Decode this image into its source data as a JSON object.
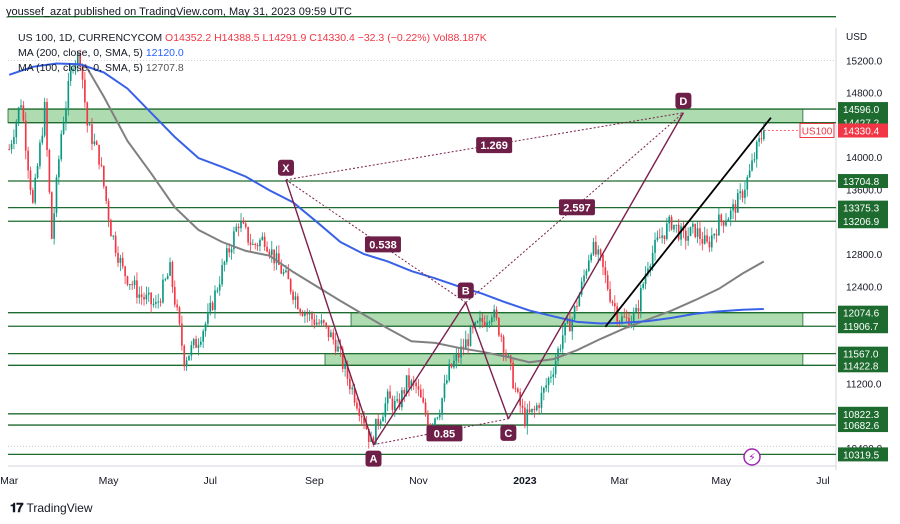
{
  "header": {
    "published": "youssef_azat published on TradingView.com, May 31, 2023 09:59 UTC",
    "symbol_line": {
      "name": "US 100, 1D, CURRENCYCOM",
      "ohlc": "O14352.2 H14388.5 L14291.9 C14330.4 −32.3 (−0.22%)",
      "vol": "Vol88.187K"
    },
    "ma200": {
      "label": "MA (200, close, 0, SMA, 5)",
      "value": "12120.0"
    },
    "ma100": {
      "label": "MA (100, close, 0, SMA, 5)",
      "value": "12707.8"
    }
  },
  "footer": {
    "brand": "TradingView"
  },
  "chart_data": {
    "type": "candlestick",
    "currency": "USD",
    "symbol_tag": "US100",
    "last_price": 14330.4,
    "y_range": [
      10250,
      15600
    ],
    "y_ticks": [
      15200.0,
      14800.0,
      14000.0,
      13600.0,
      12800.0,
      12400.0,
      11200.0,
      10400.0
    ],
    "x_labels": [
      {
        "label": "Mar",
        "i": 0
      },
      {
        "label": "May",
        "i": 42
      },
      {
        "label": "Jul",
        "i": 85
      },
      {
        "label": "Sep",
        "i": 129
      },
      {
        "label": "Nov",
        "i": 173
      },
      {
        "label": "2023",
        "i": 218
      },
      {
        "label": "Mar",
        "i": 258
      },
      {
        "label": "May",
        "i": 301
      },
      {
        "label": "Jul",
        "i": 344
      }
    ],
    "bars_total": 350,
    "price_path": [
      [
        0,
        14100
      ],
      [
        5,
        14700
      ],
      [
        10,
        13400
      ],
      [
        15,
        14600
      ],
      [
        18,
        13000
      ],
      [
        22,
        14300
      ],
      [
        27,
        15200
      ],
      [
        30,
        15260
      ],
      [
        33,
        14400
      ],
      [
        38,
        14000
      ],
      [
        43,
        13100
      ],
      [
        48,
        12600
      ],
      [
        55,
        12300
      ],
      [
        62,
        12150
      ],
      [
        68,
        12600
      ],
      [
        74,
        11500
      ],
      [
        79,
        11700
      ],
      [
        84,
        12000
      ],
      [
        90,
        12600
      ],
      [
        97,
        13200
      ],
      [
        103,
        12900
      ],
      [
        108,
        13000
      ],
      [
        113,
        12700
      ],
      [
        118,
        12450
      ],
      [
        123,
        12150
      ],
      [
        128,
        12000
      ],
      [
        133,
        11900
      ],
      [
        138,
        11700
      ],
      [
        142,
        11350
      ],
      [
        146,
        11050
      ],
      [
        150,
        10760
      ],
      [
        153,
        10450
      ],
      [
        156,
        10750
      ],
      [
        160,
        11000
      ],
      [
        164,
        10900
      ],
      [
        168,
        11200
      ],
      [
        172,
        11150
      ],
      [
        175,
        10900
      ],
      [
        178,
        10700
      ],
      [
        182,
        10900
      ],
      [
        186,
        11350
      ],
      [
        190,
        11550
      ],
      [
        194,
        11750
      ],
      [
        198,
        11900
      ],
      [
        204,
        12100
      ],
      [
        208,
        11800
      ],
      [
        212,
        11350
      ],
      [
        215,
        11000
      ],
      [
        218,
        10760
      ],
      [
        222,
        10850
      ],
      [
        226,
        11100
      ],
      [
        230,
        11400
      ],
      [
        234,
        11800
      ],
      [
        238,
        12000
      ],
      [
        242,
        12400
      ],
      [
        246,
        12900
      ],
      [
        250,
        12700
      ],
      [
        254,
        12300
      ],
      [
        258,
        12000
      ],
      [
        261,
        11980
      ],
      [
        265,
        12050
      ],
      [
        270,
        12700
      ],
      [
        275,
        13000
      ],
      [
        280,
        13200
      ],
      [
        285,
        13000
      ],
      [
        290,
        13100
      ],
      [
        295,
        12900
      ],
      [
        300,
        13200
      ],
      [
        305,
        13300
      ],
      [
        309,
        13500
      ],
      [
        313,
        13800
      ],
      [
        316,
        14100
      ],
      [
        319,
        14330
      ]
    ],
    "ma200": [
      [
        0,
        15020
      ],
      [
        10,
        15120
      ],
      [
        20,
        15160
      ],
      [
        30,
        15150
      ],
      [
        40,
        15050
      ],
      [
        50,
        14850
      ],
      [
        60,
        14550
      ],
      [
        70,
        14250
      ],
      [
        80,
        13990
      ],
      [
        90,
        13880
      ],
      [
        100,
        13760
      ],
      [
        110,
        13590
      ],
      [
        120,
        13440
      ],
      [
        130,
        13200
      ],
      [
        140,
        12950
      ],
      [
        150,
        12800
      ],
      [
        160,
        12710
      ],
      [
        170,
        12590
      ],
      [
        180,
        12500
      ],
      [
        190,
        12400
      ],
      [
        200,
        12310
      ],
      [
        210,
        12200
      ],
      [
        220,
        12100
      ],
      [
        230,
        12030
      ],
      [
        240,
        11960
      ],
      [
        250,
        11940
      ],
      [
        260,
        11950
      ],
      [
        270,
        11970
      ],
      [
        280,
        12010
      ],
      [
        290,
        12060
      ],
      [
        300,
        12090
      ],
      [
        310,
        12110
      ],
      [
        319,
        12120
      ]
    ],
    "ma100": [
      [
        32,
        15150
      ],
      [
        40,
        14750
      ],
      [
        50,
        14200
      ],
      [
        60,
        13800
      ],
      [
        70,
        13380
      ],
      [
        80,
        13100
      ],
      [
        90,
        12950
      ],
      [
        100,
        12840
      ],
      [
        110,
        12780
      ],
      [
        120,
        12580
      ],
      [
        130,
        12400
      ],
      [
        140,
        12220
      ],
      [
        150,
        12050
      ],
      [
        160,
        11880
      ],
      [
        170,
        11720
      ],
      [
        180,
        11700
      ],
      [
        190,
        11640
      ],
      [
        200,
        11590
      ],
      [
        210,
        11530
      ],
      [
        220,
        11460
      ],
      [
        230,
        11500
      ],
      [
        240,
        11610
      ],
      [
        250,
        11750
      ],
      [
        260,
        11880
      ],
      [
        270,
        11990
      ],
      [
        280,
        12100
      ],
      [
        290,
        12230
      ],
      [
        300,
        12370
      ],
      [
        310,
        12560
      ],
      [
        319,
        12708
      ]
    ],
    "horizontal_levels": [
      {
        "value": 14596.0,
        "label": "14596.0"
      },
      {
        "value": 14427.2,
        "label": "14427.2"
      },
      {
        "value": 13704.8,
        "label": "13704.8"
      },
      {
        "value": 13375.3,
        "label": "13375.3"
      },
      {
        "value": 13206.9,
        "label": "13206.9"
      },
      {
        "value": 12074.6,
        "label": "12074.6"
      },
      {
        "value": 11906.7,
        "label": "11906.7"
      },
      {
        "value": 11567.0,
        "label": "11567.0"
      },
      {
        "value": 11422.8,
        "label": "11422.8"
      },
      {
        "value": 10822.3,
        "label": "10822.3"
      },
      {
        "value": 10682.6,
        "label": "10682.6"
      },
      {
        "value": 10319.5,
        "label": "10319.5"
      }
    ],
    "top_line": 15740,
    "zones": [
      {
        "from_i": 0,
        "to_i": 336,
        "low": 14427.2,
        "high": 14596.0
      },
      {
        "from_i": 145,
        "to_i": 336,
        "low": 11906.7,
        "high": 12074.6
      },
      {
        "from_i": 134,
        "to_i": 336,
        "low": 11422.8,
        "high": 11567.0
      }
    ],
    "pattern_points": [
      {
        "label": "X",
        "i": 117,
        "price": 13720
      },
      {
        "label": "A",
        "i": 154,
        "price": 10440
      },
      {
        "label": "B",
        "i": 193,
        "price": 12200
      },
      {
        "label": "C",
        "i": 211,
        "price": 10760
      },
      {
        "label": "D",
        "i": 285,
        "price": 14550
      }
    ],
    "ratios": [
      {
        "label": "1.269",
        "i": 205,
        "price": 14150
      },
      {
        "label": "0.538",
        "i": 158,
        "price": 12920
      },
      {
        "label": "2.597",
        "i": 240,
        "price": 13380
      },
      {
        "label": "0.85",
        "i": 184,
        "price": 10580
      }
    ],
    "trendline": {
      "from": [
        252,
        11900
      ],
      "to": [
        322,
        14490
      ]
    }
  }
}
